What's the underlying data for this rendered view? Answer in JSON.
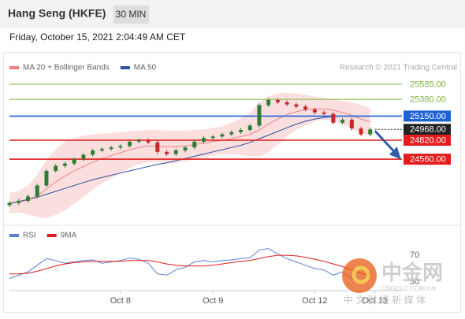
{
  "header": {
    "title": "Hang Seng (HKFE)",
    "timeframe": "30 MIN",
    "date": "Friday, October 15, 2021 2:04:49 AM CET"
  },
  "watermark": {
    "name": "中金网",
    "site": "CNGOLD.COM.CN",
    "slogan": "中 文 财 经 新 媒 体"
  },
  "chart_data": [
    {
      "type": "candlestick",
      "credit": "Research © 2021 Trading Central",
      "xlim": [
        0,
        42
      ],
      "ylim": [
        23720,
        25715
      ],
      "up_color": "#2f7d32",
      "down_color": "#c62828",
      "open": [
        23930,
        23960,
        23990,
        24050,
        24200,
        24400,
        24470,
        24500,
        24560,
        24620,
        24680,
        24700,
        24720,
        24740,
        24800,
        24820,
        24790,
        24660,
        24630,
        24680,
        24720,
        24800,
        24850,
        24870,
        24900,
        24930,
        24960,
        25020,
        25300,
        25370,
        25340,
        25310,
        25280,
        25240,
        25200,
        25180,
        25060,
        25100,
        24980,
        24900
      ],
      "high": [
        23985,
        24015,
        24075,
        24225,
        24425,
        24495,
        24525,
        24585,
        24645,
        24705,
        24725,
        24745,
        24765,
        24825,
        24845,
        24845,
        24815,
        24685,
        24705,
        24745,
        24825,
        24875,
        24895,
        24925,
        24955,
        24985,
        25045,
        25325,
        25395,
        25395,
        25365,
        25335,
        25305,
        25265,
        25225,
        25205,
        25125,
        25125,
        25005,
        24993
      ],
      "low": [
        23905,
        23935,
        23965,
        24025,
        24175,
        24375,
        24445,
        24475,
        24535,
        24595,
        24655,
        24675,
        24695,
        24715,
        24775,
        24765,
        24635,
        24605,
        24605,
        24655,
        24695,
        24775,
        24825,
        24845,
        24875,
        24905,
        24935,
        24995,
        25275,
        25315,
        25285,
        25255,
        25215,
        25175,
        25155,
        25035,
        25035,
        24955,
        24875,
        24875
      ],
      "close": [
        23960,
        23990,
        24050,
        24200,
        24400,
        24470,
        24500,
        24560,
        24620,
        24680,
        24700,
        24720,
        24740,
        24800,
        24820,
        24790,
        24660,
        24630,
        24680,
        24720,
        24800,
        24850,
        24870,
        24900,
        24930,
        24960,
        25020,
        25300,
        25370,
        25340,
        25310,
        25280,
        25240,
        25200,
        25180,
        25060,
        25100,
        24980,
        24900,
        24968
      ],
      "series": [
        {
          "name": "MA 20 + Bollinger Bands",
          "color": "#f08080",
          "values": [
            23960,
            23975,
            24000,
            24060,
            24150,
            24250,
            24330,
            24400,
            24460,
            24520,
            24570,
            24610,
            24650,
            24690,
            24720,
            24740,
            24740,
            24730,
            24730,
            24740,
            24760,
            24780,
            24800,
            24820,
            24840,
            24870,
            24900,
            24960,
            25040,
            25110,
            25170,
            25210,
            25240,
            25250,
            25250,
            25230,
            25200,
            25160,
            25110,
            25070
          ],
          "upper": [
            24100,
            24120,
            24200,
            24350,
            24550,
            24700,
            24800,
            24850,
            24880,
            24900,
            24910,
            24920,
            24930,
            24940,
            24950,
            24960,
            24960,
            24950,
            24950,
            24950,
            24960,
            24970,
            24990,
            25010,
            25060,
            25120,
            25200,
            25330,
            25420,
            25460,
            25470,
            25460,
            25440,
            25420,
            25400,
            25380,
            25360,
            25340,
            25300,
            25260
          ],
          "lower": [
            23820,
            23830,
            23800,
            23770,
            23750,
            23800,
            23860,
            23950,
            24040,
            24140,
            24230,
            24300,
            24370,
            24440,
            24490,
            24520,
            24520,
            24510,
            24510,
            24530,
            24560,
            24590,
            24610,
            24630,
            24620,
            24620,
            24600,
            24590,
            24660,
            24760,
            24870,
            24960,
            25020,
            25080,
            25100,
            25080,
            25040,
            24980,
            24920,
            24880
          ]
        },
        {
          "name": "MA 50",
          "color": "#2c4f9e",
          "values": [
            23950,
            23980,
            24010,
            24040,
            24080,
            24120,
            24160,
            24200,
            24240,
            24280,
            24310,
            24340,
            24370,
            24400,
            24430,
            24460,
            24490,
            24510,
            24540,
            24570,
            24600,
            24630,
            24660,
            24690,
            24720,
            24750,
            24790,
            24840,
            24890,
            24940,
            24990,
            25040,
            25080,
            25110,
            25130,
            25145,
            25150,
            25150,
            25150,
            25150
          ]
        }
      ],
      "levels": [
        {
          "value": 25585,
          "label": "25585.00",
          "color": "#7cb342",
          "boxed": false,
          "dash": false
        },
        {
          "value": 25380,
          "label": "25380.00",
          "color": "#7cb342",
          "boxed": false,
          "dash": false
        },
        {
          "value": 25150,
          "label": "25150.00",
          "color": "#1e63d6",
          "boxed": true,
          "dash": false
        },
        {
          "value": 24968,
          "label": "24968.00",
          "color": "#222222",
          "boxed": true,
          "dash": true
        },
        {
          "value": 24820,
          "label": "24820.00",
          "color": "#e31b1b",
          "boxed": true,
          "dash": false
        },
        {
          "value": 24560,
          "label": "24560.00",
          "color": "#e31b1b",
          "boxed": true,
          "dash": false
        }
      ]
    },
    {
      "type": "line",
      "xlim": [
        0,
        42
      ],
      "ylim": [
        18,
        108
      ],
      "yticks": [
        70,
        30
      ],
      "xticks": [
        {
          "value": 12,
          "label": "Oct 8"
        },
        {
          "value": 22,
          "label": "Oct 9"
        },
        {
          "value": 33,
          "label": "Oct 12"
        },
        {
          "value": 39.5,
          "label": "Oct 13"
        }
      ],
      "series": [
        {
          "name": "RSI",
          "color": "#5b7fd6",
          "values": [
            35,
            40,
            45,
            55,
            65,
            62,
            58,
            60,
            62,
            63,
            58,
            60,
            62,
            66,
            64,
            58,
            42,
            40,
            48,
            52,
            60,
            62,
            60,
            62,
            63,
            65,
            66,
            78,
            80,
            72,
            65,
            60,
            55,
            50,
            48,
            40,
            45,
            35,
            30,
            45
          ]
        },
        {
          "name": "9MA",
          "color": "#e31b1b",
          "values": [
            42,
            42,
            43,
            46,
            50,
            54,
            57,
            59,
            60,
            61,
            61,
            61,
            61,
            62,
            62,
            62,
            60,
            57,
            55,
            54,
            54,
            54,
            55,
            57,
            59,
            61,
            62,
            65,
            68,
            70,
            70,
            69,
            67,
            64,
            61,
            57,
            53,
            48,
            43,
            40
          ]
        }
      ]
    }
  ]
}
